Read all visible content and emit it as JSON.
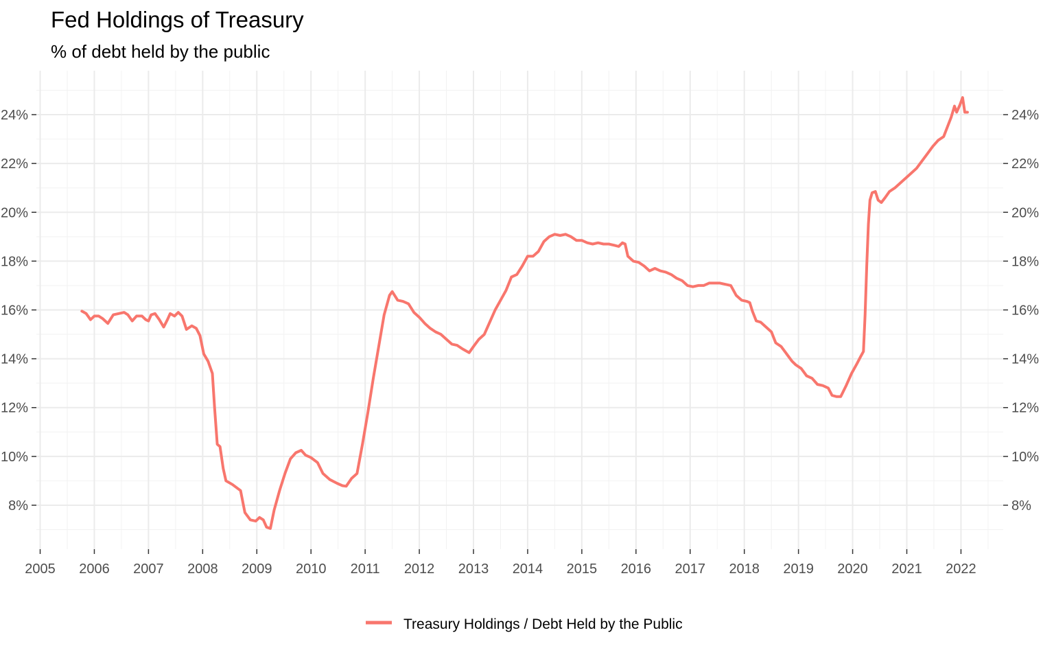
{
  "chart_data": {
    "type": "line",
    "title": "Fed Holdings of Treasury",
    "subtitle": "% of debt held by the public",
    "xlabel": "",
    "ylabel": "",
    "x_ticks": [
      "2005",
      "2006",
      "2007",
      "2008",
      "2009",
      "2010",
      "2011",
      "2012",
      "2013",
      "2014",
      "2015",
      "2016",
      "2017",
      "2018",
      "2019",
      "2020",
      "2021",
      "2022"
    ],
    "y_ticks": [
      "8%",
      "10%",
      "12%",
      "14%",
      "16%",
      "18%",
      "20%",
      "22%",
      "24%"
    ],
    "xlim": [
      2004.93,
      2022.78
    ],
    "ylim": [
      6.2,
      25.8
    ],
    "grid": true,
    "secondary_y_axis": true,
    "legend_position": "bottom",
    "series": [
      {
        "name": "Treasury Holdings / Debt Held by the Public",
        "color": "#F8766D",
        "points": [
          [
            2005.77,
            15.95
          ],
          [
            2005.85,
            15.85
          ],
          [
            2005.93,
            15.6
          ],
          [
            2006.0,
            15.75
          ],
          [
            2006.08,
            15.75
          ],
          [
            2006.15,
            15.65
          ],
          [
            2006.25,
            15.45
          ],
          [
            2006.35,
            15.8
          ],
          [
            2006.45,
            15.85
          ],
          [
            2006.55,
            15.9
          ],
          [
            2006.62,
            15.8
          ],
          [
            2006.7,
            15.55
          ],
          [
            2006.78,
            15.75
          ],
          [
            2006.88,
            15.75
          ],
          [
            2006.95,
            15.6
          ],
          [
            2007.0,
            15.55
          ],
          [
            2007.05,
            15.8
          ],
          [
            2007.12,
            15.85
          ],
          [
            2007.2,
            15.6
          ],
          [
            2007.28,
            15.3
          ],
          [
            2007.35,
            15.6
          ],
          [
            2007.4,
            15.85
          ],
          [
            2007.48,
            15.75
          ],
          [
            2007.55,
            15.9
          ],
          [
            2007.62,
            15.75
          ],
          [
            2007.7,
            15.2
          ],
          [
            2007.8,
            15.35
          ],
          [
            2007.88,
            15.25
          ],
          [
            2007.95,
            14.95
          ],
          [
            2008.02,
            14.2
          ],
          [
            2008.1,
            13.9
          ],
          [
            2008.18,
            13.4
          ],
          [
            2008.22,
            12.0
          ],
          [
            2008.27,
            10.5
          ],
          [
            2008.32,
            10.4
          ],
          [
            2008.38,
            9.5
          ],
          [
            2008.43,
            9.0
          ],
          [
            2008.55,
            8.85
          ],
          [
            2008.7,
            8.6
          ],
          [
            2008.78,
            7.7
          ],
          [
            2008.88,
            7.4
          ],
          [
            2008.98,
            7.35
          ],
          [
            2009.05,
            7.5
          ],
          [
            2009.12,
            7.4
          ],
          [
            2009.18,
            7.1
          ],
          [
            2009.25,
            7.05
          ],
          [
            2009.32,
            7.8
          ],
          [
            2009.42,
            8.6
          ],
          [
            2009.52,
            9.3
          ],
          [
            2009.62,
            9.9
          ],
          [
            2009.72,
            10.15
          ],
          [
            2009.82,
            10.25
          ],
          [
            2009.9,
            10.05
          ],
          [
            2010.0,
            9.95
          ],
          [
            2010.12,
            9.75
          ],
          [
            2010.22,
            9.3
          ],
          [
            2010.35,
            9.05
          ],
          [
            2010.48,
            8.9
          ],
          [
            2010.58,
            8.8
          ],
          [
            2010.65,
            8.78
          ],
          [
            2010.75,
            9.1
          ],
          [
            2010.85,
            9.3
          ],
          [
            2010.95,
            10.5
          ],
          [
            2011.05,
            11.8
          ],
          [
            2011.15,
            13.2
          ],
          [
            2011.25,
            14.5
          ],
          [
            2011.35,
            15.8
          ],
          [
            2011.45,
            16.6
          ],
          [
            2011.5,
            16.75
          ],
          [
            2011.6,
            16.4
          ],
          [
            2011.7,
            16.35
          ],
          [
            2011.8,
            16.25
          ],
          [
            2011.9,
            15.9
          ],
          [
            2012.0,
            15.7
          ],
          [
            2012.1,
            15.45
          ],
          [
            2012.2,
            15.25
          ],
          [
            2012.3,
            15.1
          ],
          [
            2012.4,
            15.0
          ],
          [
            2012.5,
            14.8
          ],
          [
            2012.6,
            14.6
          ],
          [
            2012.7,
            14.55
          ],
          [
            2012.8,
            14.4
          ],
          [
            2012.92,
            14.25
          ],
          [
            2013.0,
            14.5
          ],
          [
            2013.1,
            14.8
          ],
          [
            2013.2,
            15.0
          ],
          [
            2013.3,
            15.5
          ],
          [
            2013.4,
            16.0
          ],
          [
            2013.5,
            16.4
          ],
          [
            2013.6,
            16.8
          ],
          [
            2013.7,
            17.35
          ],
          [
            2013.8,
            17.45
          ],
          [
            2013.9,
            17.8
          ],
          [
            2014.0,
            18.2
          ],
          [
            2014.1,
            18.2
          ],
          [
            2014.2,
            18.4
          ],
          [
            2014.3,
            18.8
          ],
          [
            2014.4,
            19.0
          ],
          [
            2014.5,
            19.1
          ],
          [
            2014.6,
            19.05
          ],
          [
            2014.7,
            19.1
          ],
          [
            2014.8,
            19.0
          ],
          [
            2014.9,
            18.85
          ],
          [
            2015.0,
            18.85
          ],
          [
            2015.1,
            18.75
          ],
          [
            2015.2,
            18.7
          ],
          [
            2015.3,
            18.75
          ],
          [
            2015.4,
            18.7
          ],
          [
            2015.5,
            18.7
          ],
          [
            2015.6,
            18.65
          ],
          [
            2015.68,
            18.6
          ],
          [
            2015.75,
            18.75
          ],
          [
            2015.8,
            18.7
          ],
          [
            2015.85,
            18.2
          ],
          [
            2015.95,
            18.0
          ],
          [
            2016.05,
            17.95
          ],
          [
            2016.15,
            17.8
          ],
          [
            2016.25,
            17.6
          ],
          [
            2016.35,
            17.7
          ],
          [
            2016.45,
            17.6
          ],
          [
            2016.55,
            17.55
          ],
          [
            2016.65,
            17.45
          ],
          [
            2016.75,
            17.3
          ],
          [
            2016.85,
            17.2
          ],
          [
            2016.95,
            17.0
          ],
          [
            2017.05,
            16.95
          ],
          [
            2017.15,
            17.0
          ],
          [
            2017.25,
            17.0
          ],
          [
            2017.35,
            17.1
          ],
          [
            2017.45,
            17.1
          ],
          [
            2017.55,
            17.1
          ],
          [
            2017.65,
            17.05
          ],
          [
            2017.75,
            17.0
          ],
          [
            2017.85,
            16.6
          ],
          [
            2017.95,
            16.4
          ],
          [
            2018.05,
            16.35
          ],
          [
            2018.1,
            16.3
          ],
          [
            2018.15,
            15.95
          ],
          [
            2018.22,
            15.55
          ],
          [
            2018.3,
            15.5
          ],
          [
            2018.4,
            15.3
          ],
          [
            2018.5,
            15.1
          ],
          [
            2018.58,
            14.65
          ],
          [
            2018.68,
            14.5
          ],
          [
            2018.78,
            14.2
          ],
          [
            2018.88,
            13.9
          ],
          [
            2018.95,
            13.75
          ],
          [
            2019.05,
            13.6
          ],
          [
            2019.15,
            13.3
          ],
          [
            2019.25,
            13.2
          ],
          [
            2019.35,
            12.95
          ],
          [
            2019.45,
            12.9
          ],
          [
            2019.55,
            12.8
          ],
          [
            2019.62,
            12.5
          ],
          [
            2019.7,
            12.45
          ],
          [
            2019.78,
            12.45
          ],
          [
            2019.88,
            12.9
          ],
          [
            2019.98,
            13.4
          ],
          [
            2020.08,
            13.8
          ],
          [
            2020.15,
            14.1
          ],
          [
            2020.2,
            14.3
          ],
          [
            2020.23,
            15.8
          ],
          [
            2020.26,
            17.8
          ],
          [
            2020.29,
            19.5
          ],
          [
            2020.32,
            20.5
          ],
          [
            2020.36,
            20.8
          ],
          [
            2020.42,
            20.85
          ],
          [
            2020.47,
            20.5
          ],
          [
            2020.53,
            20.4
          ],
          [
            2020.6,
            20.6
          ],
          [
            2020.68,
            20.85
          ],
          [
            2020.78,
            21.0
          ],
          [
            2020.88,
            21.2
          ],
          [
            2020.98,
            21.4
          ],
          [
            2021.08,
            21.6
          ],
          [
            2021.18,
            21.8
          ],
          [
            2021.28,
            22.1
          ],
          [
            2021.38,
            22.4
          ],
          [
            2021.48,
            22.7
          ],
          [
            2021.58,
            22.95
          ],
          [
            2021.68,
            23.1
          ],
          [
            2021.75,
            23.5
          ],
          [
            2021.82,
            23.9
          ],
          [
            2021.88,
            24.35
          ],
          [
            2021.92,
            24.1
          ],
          [
            2021.98,
            24.4
          ],
          [
            2022.03,
            24.7
          ],
          [
            2022.07,
            24.1
          ],
          [
            2022.12,
            24.1
          ]
        ]
      }
    ]
  }
}
